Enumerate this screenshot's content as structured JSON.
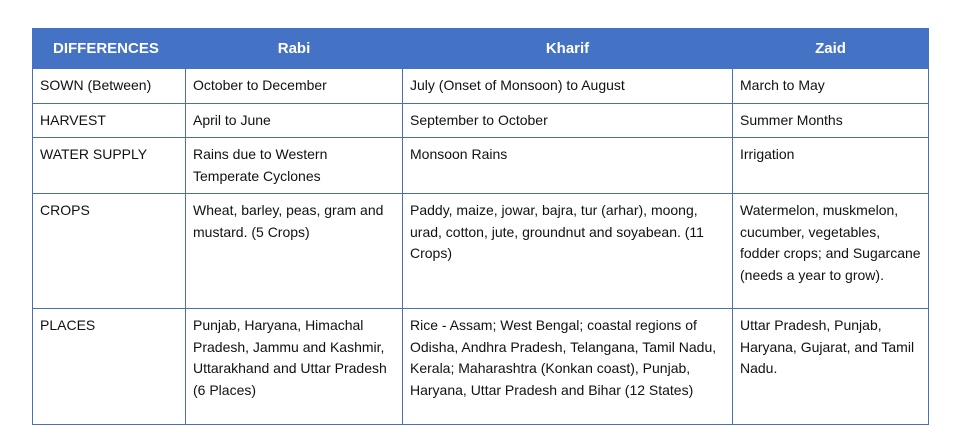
{
  "table": {
    "header": [
      "DIFFERENCES",
      "Rabi",
      "Kharif",
      "Zaid"
    ],
    "rows": [
      [
        "SOWN (Between)",
        "October to December",
        "July (Onset of Monsoon) to August",
        "March to May"
      ],
      [
        "HARVEST",
        "April to June",
        "September to October",
        "Summer Months"
      ],
      [
        "WATER SUPPLY",
        "Rains due to Western Temperate Cyclones",
        "Monsoon Rains",
        "Irrigation"
      ],
      [
        "CROPS",
        "Wheat, barley, peas, gram and mustard. (5 Crops)",
        "Paddy, maize, jowar, bajra, tur (arhar), moong, urad, cotton, jute, groundnut and soyabean. (11 Crops)",
        "Watermelon, muskmelon, cucumber, vegetables, fodder crops; and Sugarcane (needs a year to grow)."
      ],
      [
        "PLACES",
        "Punjab, Haryana, Himachal Pradesh, Jammu and Kashmir, Uttarakhand and Uttar Pradesh (6 Places)",
        "Rice - Assam; West Bengal; coastal regions of Odisha, Andhra Pradesh, Telangana, Tamil Nadu, Kerala; Maharashtra (Konkan coast), Punjab, Haryana, Uttar Pradesh and Bihar (12 States)",
        "Uttar Pradesh, Punjab, Haryana, Gujarat, and Tamil Nadu."
      ]
    ]
  }
}
